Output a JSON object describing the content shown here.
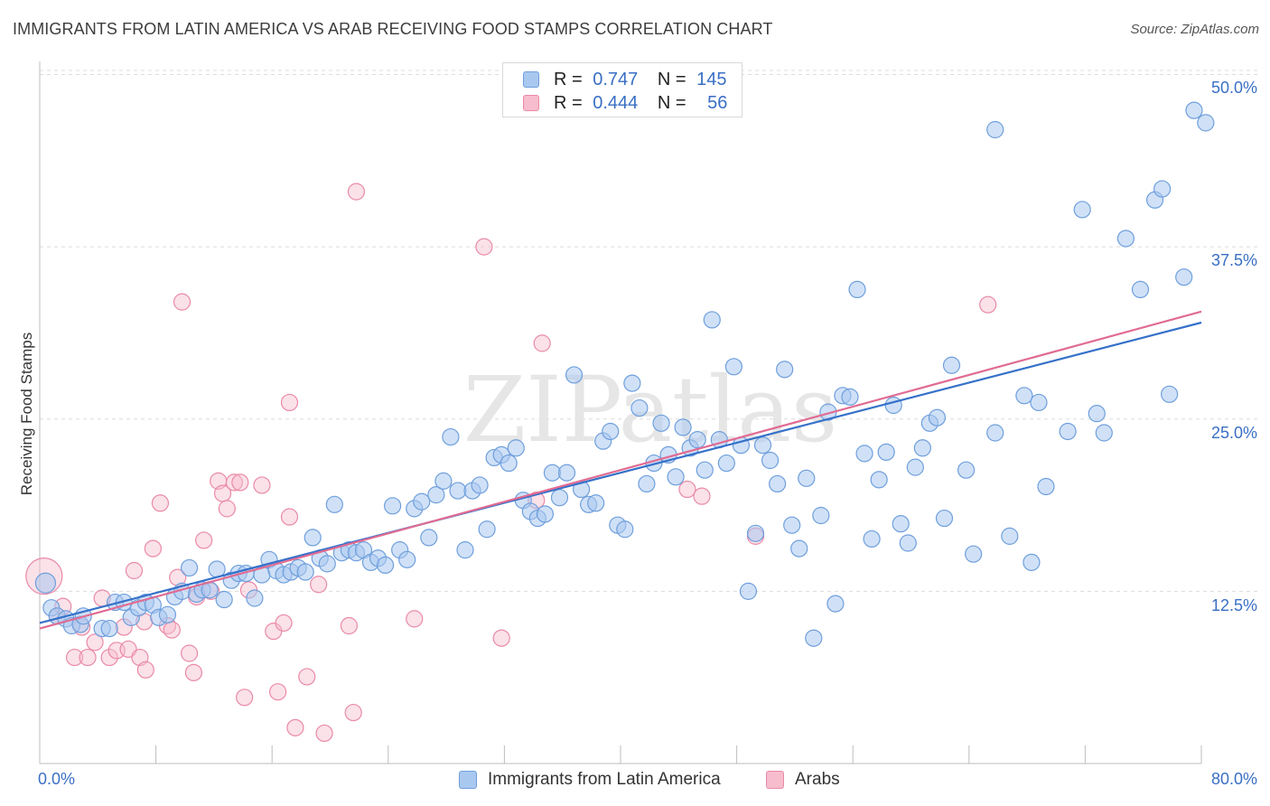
{
  "title": "IMMIGRANTS FROM LATIN AMERICA VS ARAB RECEIVING FOOD STAMPS CORRELATION CHART",
  "source": "Source: ZipAtlas.com",
  "watermark": "ZIPatlas",
  "colors": {
    "blue_fill": "#a9c8f0",
    "blue_stroke": "#6f9fdc",
    "blue_line": "#3571c9",
    "pink_fill": "#f7bccd",
    "pink_stroke": "#e98aa7",
    "pink_line": "#e06c93",
    "axis_text": "#3a6fc4"
  },
  "legend": {
    "r_label": "R =",
    "n_label": "N =",
    "blue": {
      "r": "0.747",
      "n": "145"
    },
    "pink": {
      "r": "0.444",
      "n": "56"
    }
  },
  "bottom_legend": {
    "blue": "Immigrants from Latin America",
    "pink": "Arabs"
  },
  "chart_data": {
    "type": "scatter",
    "title": "IMMIGRANTS FROM LATIN AMERICA VS ARAB RECEIVING FOOD STAMPS CORRELATION CHART",
    "xlabel": "",
    "ylabel": "Receiving Food Stamps",
    "xlim": [
      0,
      80
    ],
    "ylim": [
      0,
      52
    ],
    "x_tick_labels": [
      "0.0%",
      "80.0%"
    ],
    "y_ticks": [
      12.5,
      25.0,
      37.5,
      50.0
    ],
    "y_tick_labels": [
      "12.5%",
      "25.0%",
      "37.5%",
      "50.0%"
    ],
    "grid": "horizontal dashed",
    "series": [
      {
        "name": "Immigrants from Latin America",
        "color": "#a9c8f0",
        "trend": {
          "x": [
            0,
            80
          ],
          "y": [
            10.2,
            32.0
          ]
        },
        "points": [
          [
            0.4,
            13.1
          ],
          [
            0.8,
            11.3
          ],
          [
            1.2,
            10.7
          ],
          [
            1.8,
            10.5
          ],
          [
            2.2,
            10.0
          ],
          [
            2.8,
            10.1
          ],
          [
            3.0,
            10.7
          ],
          [
            4.3,
            9.8
          ],
          [
            4.8,
            9.8
          ],
          [
            5.2,
            11.7
          ],
          [
            5.8,
            11.7
          ],
          [
            6.3,
            10.6
          ],
          [
            6.8,
            11.3
          ],
          [
            7.3,
            11.7
          ],
          [
            7.8,
            11.5
          ],
          [
            8.2,
            10.6
          ],
          [
            8.8,
            10.8
          ],
          [
            9.3,
            12.1
          ],
          [
            9.8,
            12.5
          ],
          [
            10.3,
            14.2
          ],
          [
            10.8,
            12.3
          ],
          [
            11.2,
            12.6
          ],
          [
            11.7,
            12.6
          ],
          [
            12.2,
            14.1
          ],
          [
            12.7,
            11.9
          ],
          [
            13.2,
            13.3
          ],
          [
            13.7,
            13.8
          ],
          [
            14.2,
            13.8
          ],
          [
            14.8,
            12.0
          ],
          [
            15.3,
            13.7
          ],
          [
            15.8,
            14.8
          ],
          [
            16.3,
            14.0
          ],
          [
            16.8,
            13.7
          ],
          [
            17.3,
            13.9
          ],
          [
            17.8,
            14.2
          ],
          [
            18.3,
            13.9
          ],
          [
            18.8,
            16.4
          ],
          [
            19.3,
            14.9
          ],
          [
            19.8,
            14.5
          ],
          [
            20.3,
            18.8
          ],
          [
            20.8,
            15.3
          ],
          [
            21.3,
            15.5
          ],
          [
            21.8,
            15.3
          ],
          [
            22.3,
            15.5
          ],
          [
            22.8,
            14.6
          ],
          [
            23.3,
            14.9
          ],
          [
            23.8,
            14.4
          ],
          [
            24.3,
            18.7
          ],
          [
            24.8,
            15.5
          ],
          [
            25.3,
            14.8
          ],
          [
            25.8,
            18.5
          ],
          [
            26.3,
            19.0
          ],
          [
            26.8,
            16.4
          ],
          [
            27.3,
            19.5
          ],
          [
            27.8,
            20.5
          ],
          [
            28.3,
            23.7
          ],
          [
            28.8,
            19.8
          ],
          [
            29.3,
            15.5
          ],
          [
            29.8,
            19.8
          ],
          [
            30.3,
            20.2
          ],
          [
            30.8,
            17.0
          ],
          [
            31.3,
            22.2
          ],
          [
            31.8,
            22.4
          ],
          [
            32.3,
            21.8
          ],
          [
            32.8,
            22.9
          ],
          [
            33.3,
            19.1
          ],
          [
            33.8,
            18.3
          ],
          [
            34.3,
            17.8
          ],
          [
            34.8,
            18.1
          ],
          [
            35.3,
            21.1
          ],
          [
            35.8,
            19.3
          ],
          [
            36.3,
            21.1
          ],
          [
            36.8,
            28.2
          ],
          [
            37.3,
            19.9
          ],
          [
            37.8,
            18.8
          ],
          [
            38.3,
            18.9
          ],
          [
            38.8,
            23.4
          ],
          [
            39.3,
            24.1
          ],
          [
            39.8,
            17.3
          ],
          [
            40.3,
            17.0
          ],
          [
            40.8,
            27.6
          ],
          [
            41.3,
            25.8
          ],
          [
            41.8,
            20.3
          ],
          [
            42.3,
            21.8
          ],
          [
            42.8,
            24.7
          ],
          [
            43.3,
            22.4
          ],
          [
            43.8,
            20.8
          ],
          [
            44.3,
            24.4
          ],
          [
            44.8,
            22.9
          ],
          [
            45.3,
            23.5
          ],
          [
            45.8,
            21.3
          ],
          [
            46.3,
            32.2
          ],
          [
            46.8,
            23.5
          ],
          [
            47.3,
            21.8
          ],
          [
            47.8,
            28.8
          ],
          [
            48.3,
            23.1
          ],
          [
            48.8,
            12.5
          ],
          [
            49.3,
            16.7
          ],
          [
            49.8,
            23.1
          ],
          [
            50.3,
            22.0
          ],
          [
            50.8,
            20.3
          ],
          [
            51.3,
            28.6
          ],
          [
            51.8,
            17.3
          ],
          [
            52.3,
            15.6
          ],
          [
            52.8,
            20.7
          ],
          [
            53.3,
            9.1
          ],
          [
            53.8,
            18.0
          ],
          [
            54.3,
            25.5
          ],
          [
            54.8,
            11.6
          ],
          [
            55.3,
            26.7
          ],
          [
            55.8,
            26.6
          ],
          [
            56.3,
            34.4
          ],
          [
            56.8,
            22.5
          ],
          [
            57.3,
            16.3
          ],
          [
            57.8,
            20.6
          ],
          [
            58.3,
            22.6
          ],
          [
            58.8,
            26.0
          ],
          [
            59.3,
            17.4
          ],
          [
            59.8,
            16.0
          ],
          [
            60.3,
            21.5
          ],
          [
            60.8,
            22.9
          ],
          [
            61.3,
            24.7
          ],
          [
            61.8,
            25.1
          ],
          [
            62.3,
            17.8
          ],
          [
            62.8,
            28.9
          ],
          [
            63.8,
            21.3
          ],
          [
            64.3,
            15.2
          ],
          [
            65.8,
            24.0
          ],
          [
            66.8,
            16.5
          ],
          [
            67.8,
            26.7
          ],
          [
            68.3,
            14.6
          ],
          [
            68.8,
            26.2
          ],
          [
            69.3,
            20.1
          ],
          [
            70.8,
            24.1
          ],
          [
            71.8,
            40.2
          ],
          [
            72.8,
            25.4
          ],
          [
            73.3,
            24.0
          ],
          [
            74.8,
            38.1
          ],
          [
            75.8,
            34.4
          ],
          [
            76.8,
            40.9
          ],
          [
            77.3,
            41.7
          ],
          [
            77.8,
            26.8
          ],
          [
            78.8,
            35.3
          ],
          [
            79.5,
            47.4
          ],
          [
            80.3,
            46.5
          ],
          [
            65.8,
            46.0
          ]
        ]
      },
      {
        "name": "Arabs",
        "color": "#f7bccd",
        "trend": {
          "x": [
            0,
            80
          ],
          "y": [
            9.8,
            32.8
          ]
        },
        "points": [
          [
            0.3,
            13.6
          ],
          [
            1.2,
            10.7
          ],
          [
            1.6,
            11.4
          ],
          [
            2.4,
            7.7
          ],
          [
            2.9,
            9.9
          ],
          [
            3.3,
            7.7
          ],
          [
            3.8,
            8.8
          ],
          [
            4.3,
            12.0
          ],
          [
            4.8,
            7.7
          ],
          [
            5.3,
            8.2
          ],
          [
            5.8,
            9.9
          ],
          [
            6.1,
            8.3
          ],
          [
            6.5,
            14.0
          ],
          [
            6.9,
            7.7
          ],
          [
            7.3,
            6.8
          ],
          [
            7.8,
            15.6
          ],
          [
            8.3,
            18.9
          ],
          [
            8.8,
            10.0
          ],
          [
            9.1,
            9.7
          ],
          [
            9.5,
            13.5
          ],
          [
            9.8,
            33.5
          ],
          [
            10.3,
            8.0
          ],
          [
            10.6,
            6.6
          ],
          [
            10.8,
            12.1
          ],
          [
            11.3,
            16.2
          ],
          [
            11.8,
            12.5
          ],
          [
            12.3,
            20.5
          ],
          [
            12.6,
            19.6
          ],
          [
            12.9,
            18.5
          ],
          [
            13.4,
            20.4
          ],
          [
            13.8,
            20.4
          ],
          [
            14.1,
            4.8
          ],
          [
            14.4,
            12.6
          ],
          [
            15.3,
            20.2
          ],
          [
            16.1,
            9.6
          ],
          [
            16.4,
            5.2
          ],
          [
            16.8,
            10.2
          ],
          [
            17.2,
            26.2
          ],
          [
            17.6,
            2.6
          ],
          [
            18.4,
            6.3
          ],
          [
            19.2,
            13.0
          ],
          [
            19.6,
            2.2
          ],
          [
            21.3,
            10.0
          ],
          [
            21.6,
            3.7
          ],
          [
            21.8,
            41.5
          ],
          [
            25.8,
            10.5
          ],
          [
            30.6,
            37.5
          ],
          [
            31.8,
            9.1
          ],
          [
            34.6,
            30.5
          ],
          [
            34.2,
            19.1
          ],
          [
            44.6,
            19.9
          ],
          [
            45.6,
            19.4
          ],
          [
            49.3,
            16.5
          ],
          [
            65.3,
            33.3
          ],
          [
            17.2,
            17.9
          ],
          [
            7.2,
            10.3
          ]
        ]
      }
    ]
  }
}
